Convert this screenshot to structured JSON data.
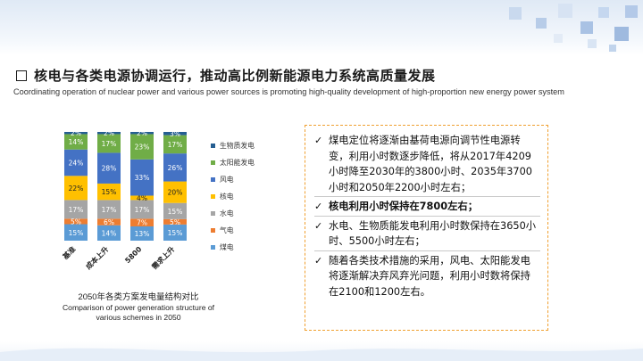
{
  "header": {
    "title": "核电与各类电源协调运行，推动高比例新能源电力系统高质量发展",
    "subtitle": "Coordinating operation of nuclear power and various power sources is promoting high-quality development of high-proportion new energy power system"
  },
  "chart_data": {
    "type": "bar",
    "stacked": true,
    "categories": [
      "基准",
      "成本上升",
      "5800",
      "需求上升"
    ],
    "series": [
      {
        "name": "煤电",
        "color": "#5b9bd5",
        "values": [
          15,
          14,
          13,
          15
        ]
      },
      {
        "name": "气电",
        "color": "#ed7d31",
        "values": [
          5,
          6,
          7,
          5
        ]
      },
      {
        "name": "水电",
        "color": "#a5a5a5",
        "values": [
          17,
          17,
          17,
          15
        ]
      },
      {
        "name": "核电",
        "color": "#ffc000",
        "values": [
          22,
          15,
          4,
          20
        ]
      },
      {
        "name": "风电",
        "color": "#4472c4",
        "values": [
          24,
          28,
          33,
          26
        ]
      },
      {
        "name": "太阳能发电",
        "color": "#70ad47",
        "values": [
          14,
          17,
          23,
          17
        ]
      },
      {
        "name": "生物质发电",
        "color": "#255e91",
        "values": [
          2,
          2,
          2,
          3
        ]
      }
    ],
    "legend_position": "right",
    "caption_cn": "2050年各类方案发电量结构对比",
    "caption_en": "Comparison of power generation structure of various schemes in 2050"
  },
  "info": {
    "check_glyph": "✓",
    "items": [
      {
        "text": "煤电定位将逐渐由基荷电源向调节性电源转变，利用小时数逐步降低，将从2017年4209小时降至2030年的3800小时、2035年3700小时和2050年2200小时左右；",
        "bold": false
      },
      {
        "text": "核电利用小时保持在7800左右；",
        "bold": true
      },
      {
        "text": "水电、生物质能发电利用小时数保持在3650小时、5500小时左右；",
        "bold": false
      },
      {
        "text": "随着各类技术措施的采用，风电、太阳能发电将逐渐解决弃风弃光问题，利用小时数将保持在2100和1200左右。",
        "bold": false
      }
    ]
  }
}
